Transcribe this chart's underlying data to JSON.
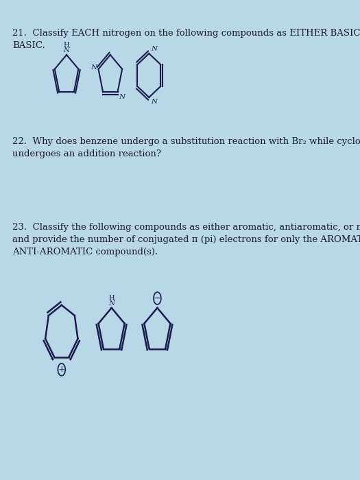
{
  "bg_color": "#b8d8e8",
  "paper_color": "#d8eaf4",
  "text_color": "#1a1a2e",
  "q21_text": "21.  Classify EACH nitrogen on the following compounds as EITHER BASIC or NON-\nBASIC.",
  "q22_text": "22.  Why does benzene undergo a substitution reaction with Br₂ while cyclohexene\nundergoes an addition reaction?",
  "q23_text": "23.  Classify the following compounds as either aromatic, antiaromatic, or nonaromatic,\nand provide the number of conjugated π (pi) electrons for only the AROMATIC or\nANTI-AROMATIC compound(s).",
  "molecule_color": "#1a1a4e",
  "font_size_q": 9.5
}
